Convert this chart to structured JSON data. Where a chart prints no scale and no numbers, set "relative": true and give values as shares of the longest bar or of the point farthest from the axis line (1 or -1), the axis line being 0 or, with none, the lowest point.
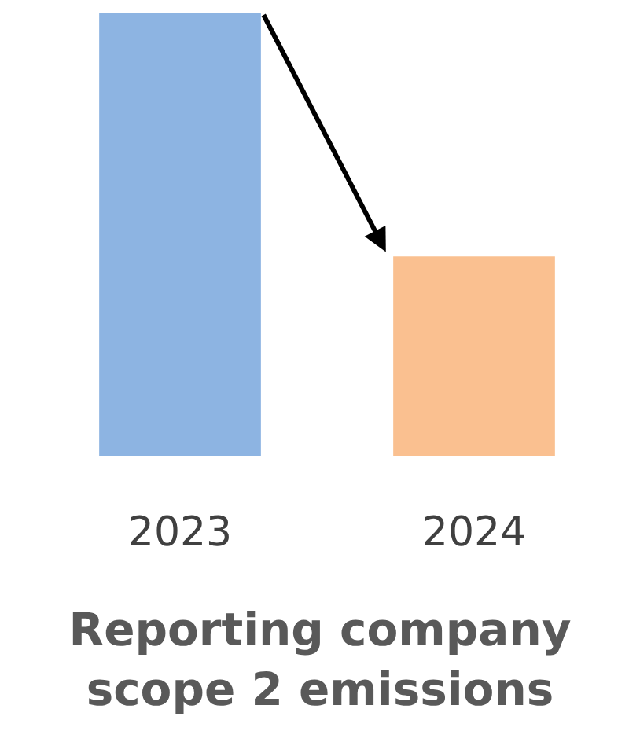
{
  "chart_data": {
    "type": "bar",
    "title": "Reporting company scope 2 emissions",
    "categories": [
      "2023",
      "2024"
    ],
    "values": [
      1,
      0.45
    ],
    "colors": [
      "#8db4e2",
      "#fac090"
    ],
    "relative": true
  }
}
